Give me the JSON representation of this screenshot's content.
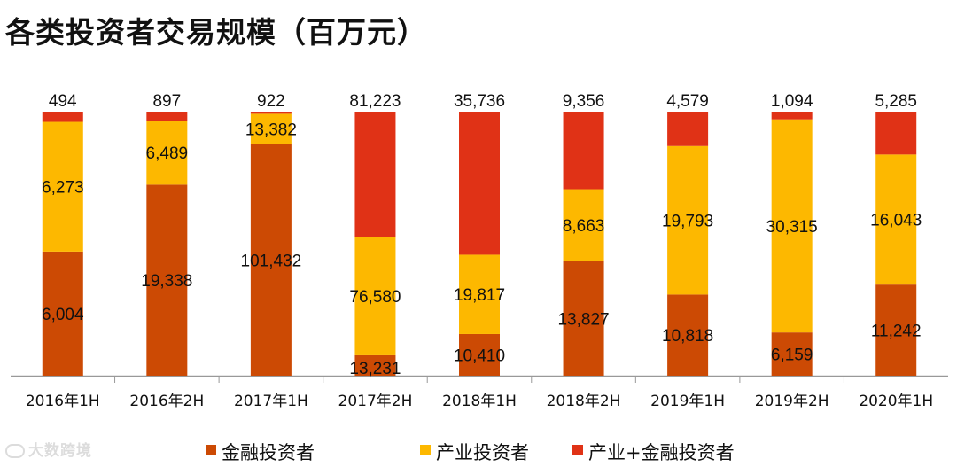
{
  "chart_data": {
    "type": "bar",
    "stacked": true,
    "normalized": true,
    "title": "各类投资者交易规模（百万元）",
    "categories": [
      "2016年1H",
      "2016年2H",
      "2017年1H",
      "2017年2H",
      "2018年1H",
      "2018年2H",
      "2019年1H",
      "2019年2H",
      "2020年1H"
    ],
    "series": [
      {
        "name": "金融投资者",
        "color": "#cc4a04",
        "values": [
          6004,
          19338,
          101432,
          13231,
          10410,
          13827,
          10818,
          6159,
          11242
        ],
        "labels": [
          "6,004",
          "19,338",
          "101,432",
          "13,231",
          "10,410",
          "13,827",
          "10,818",
          "6,159",
          "11,242"
        ]
      },
      {
        "name": "产业投资者",
        "color": "#fdb800",
        "values": [
          6273,
          6489,
          13382,
          76580,
          19817,
          8663,
          19793,
          30315,
          16043
        ],
        "labels": [
          "6,273",
          "6,489",
          "13,382",
          "76,580",
          "19,817",
          "8,663",
          "19,793",
          "30,315",
          "16,043"
        ]
      },
      {
        "name": "产业+金融投资者",
        "color": "#e03216",
        "values": [
          494,
          897,
          922,
          81223,
          35736,
          9356,
          4579,
          1094,
          5285
        ],
        "labels": [
          "494",
          "897",
          "922",
          "81,223",
          "35,736",
          "9,356",
          "4,579",
          "1,094",
          "5,285"
        ]
      }
    ],
    "xlabel": "",
    "ylabel": "",
    "grid": false,
    "legend_position": "bottom"
  },
  "watermark": {
    "text": "大数跨境"
  }
}
